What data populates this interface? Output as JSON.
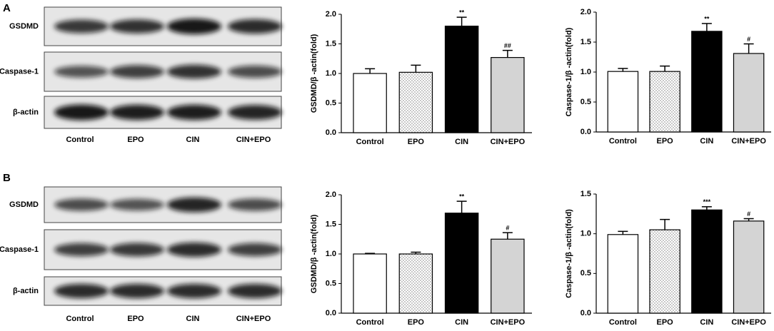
{
  "panels": [
    {
      "label": "A",
      "blot": {
        "rows": [
          "GSDMD",
          "Caspase-1",
          "β-actin"
        ],
        "lanes": [
          "Control",
          "EPO",
          "CIN",
          "CIN+EPO"
        ]
      }
    },
    {
      "label": "B",
      "blot": {
        "rows": [
          "GSDMD",
          "Caspase-1",
          "β-actin"
        ],
        "lanes": [
          "Control",
          "EPO",
          "CIN",
          "CIN+EPO"
        ]
      }
    }
  ],
  "chart_data": [
    {
      "type": "bar",
      "y_label": "GSDMD/β -actin(fold)",
      "categories": [
        "Control",
        "EPO",
        "CIN",
        "CIN+EPO"
      ],
      "values": [
        1.0,
        1.02,
        1.8,
        1.27
      ],
      "errors": [
        0.08,
        0.12,
        0.15,
        0.12
      ],
      "annotations": [
        null,
        null,
        "**",
        "##"
      ],
      "colors": [
        "#ffffff",
        "#ffffff",
        "#000000",
        "#d4d4d4"
      ],
      "hatch": [
        "none",
        "dots",
        "none",
        "none"
      ],
      "ylim": [
        0,
        2
      ],
      "yticks": [
        {
          "value": 0,
          "label": "0.0"
        },
        {
          "value": 0.5,
          "label": "0.5"
        },
        {
          "value": 1,
          "label": "1.0"
        },
        {
          "value": 1.5,
          "label": "1.5"
        },
        {
          "value": 2,
          "label": "2.0"
        }
      ]
    },
    {
      "type": "bar",
      "y_label": "Caspase-1/β -actin(fold)",
      "categories": [
        "Control",
        "EPO",
        "CIN",
        "CIN+EPO"
      ],
      "values": [
        1.01,
        1.01,
        1.68,
        1.31
      ],
      "errors": [
        0.05,
        0.09,
        0.13,
        0.16
      ],
      "annotations": [
        null,
        null,
        "**",
        "#"
      ],
      "colors": [
        "#ffffff",
        "#ffffff",
        "#000000",
        "#d4d4d4"
      ],
      "hatch": [
        "none",
        "dots",
        "none",
        "none"
      ],
      "ylim": [
        0,
        2
      ],
      "yticks": [
        {
          "value": 0,
          "label": "0.0"
        },
        {
          "value": 0.5,
          "label": "0.5"
        },
        {
          "value": 1,
          "label": "1.0"
        },
        {
          "value": 1.5,
          "label": "1.5"
        },
        {
          "value": 2,
          "label": "2.0"
        }
      ]
    },
    {
      "type": "bar",
      "y_label": "GSDMD/β -actin(fold)",
      "categories": [
        "Control",
        "EPO",
        "CIN",
        "CIN+EPO"
      ],
      "values": [
        1.0,
        1.0,
        1.69,
        1.25
      ],
      "errors": [
        0.01,
        0.03,
        0.2,
        0.11
      ],
      "annotations": [
        null,
        null,
        "**",
        "#"
      ],
      "colors": [
        "#ffffff",
        "#ffffff",
        "#000000",
        "#d4d4d4"
      ],
      "hatch": [
        "none",
        "dots",
        "none",
        "none"
      ],
      "ylim": [
        0,
        2
      ],
      "yticks": [
        {
          "value": 0,
          "label": "0.0"
        },
        {
          "value": 0.5,
          "label": "0.5"
        },
        {
          "value": 1,
          "label": "1.0"
        },
        {
          "value": 1.5,
          "label": "1.5"
        },
        {
          "value": 2,
          "label": "2.0"
        }
      ]
    },
    {
      "type": "bar",
      "y_label": "Caspase-1/β -actin(fold)",
      "categories": [
        "Control",
        "EPO",
        "CIN",
        "CIN+EPO"
      ],
      "values": [
        0.99,
        1.05,
        1.3,
        1.16
      ],
      "errors": [
        0.04,
        0.13,
        0.04,
        0.03
      ],
      "annotations": [
        null,
        null,
        "***",
        "#"
      ],
      "colors": [
        "#ffffff",
        "#ffffff",
        "#000000",
        "#d4d4d4"
      ],
      "hatch": [
        "none",
        "dots",
        "none",
        "none"
      ],
      "ylim": [
        0,
        1.5
      ],
      "yticks": [
        {
          "value": 0,
          "label": "0.0"
        },
        {
          "value": 0.5,
          "label": "0.5"
        },
        {
          "value": 1,
          "label": "1.0"
        },
        {
          "value": 1.5,
          "label": "1.5"
        }
      ]
    }
  ]
}
